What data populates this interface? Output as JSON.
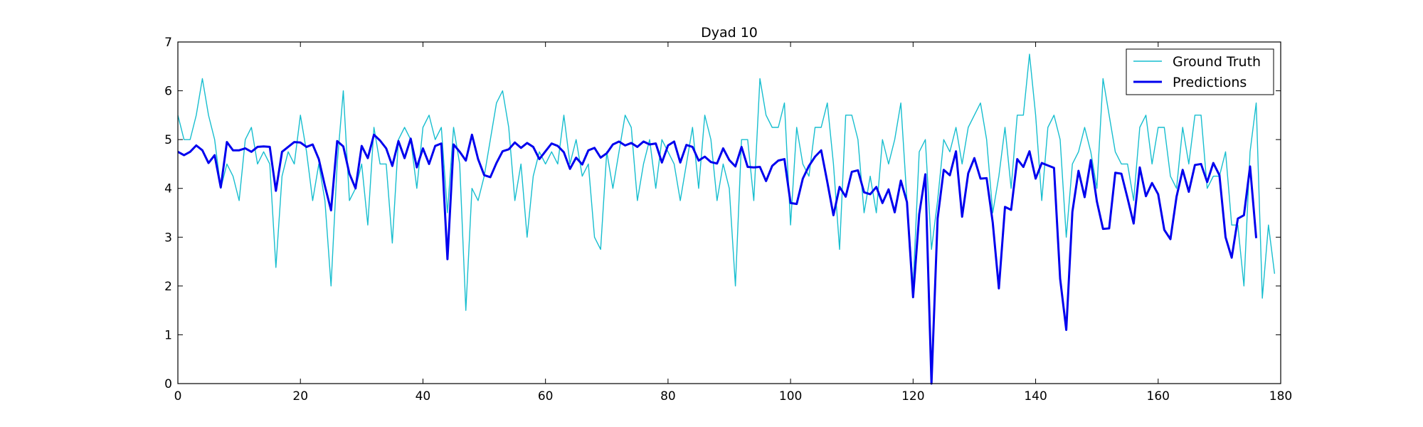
{
  "chart_data": {
    "type": "line",
    "title": "Dyad 10",
    "xlabel": "",
    "ylabel": "",
    "xlim": [
      0,
      180
    ],
    "ylim": [
      0,
      7
    ],
    "xticks": [
      0,
      20,
      40,
      60,
      80,
      100,
      120,
      140,
      160,
      180
    ],
    "yticks": [
      0,
      1,
      2,
      3,
      4,
      5,
      6,
      7
    ],
    "grid": false,
    "legend_position": "top-right",
    "series": [
      {
        "name": "Ground Truth",
        "color": "#17becf",
        "values": [
          5.5,
          5.0,
          5.0,
          5.5,
          6.25,
          5.5,
          5.0,
          4.0,
          4.5,
          4.25,
          3.75,
          5.0,
          5.25,
          4.5,
          4.75,
          4.5,
          2.38,
          4.25,
          4.75,
          4.5,
          5.5,
          4.75,
          3.75,
          4.5,
          3.75,
          2.0,
          4.5,
          6.0,
          3.75,
          4.0,
          4.5,
          3.25,
          5.25,
          4.5,
          4.5,
          2.88,
          5.0,
          5.25,
          5.0,
          4.0,
          5.25,
          5.5,
          5.0,
          5.25,
          3.5,
          5.25,
          4.5,
          1.5,
          4.0,
          3.75,
          4.25,
          5.0,
          5.75,
          6.0,
          5.25,
          3.75,
          4.5,
          3.0,
          4.25,
          4.75,
          4.5,
          4.75,
          4.5,
          5.5,
          4.5,
          5.0,
          4.25,
          4.5,
          3.0,
          2.75,
          4.75,
          4.0,
          4.75,
          5.5,
          5.25,
          3.75,
          4.5,
          5.0,
          4.0,
          5.0,
          4.75,
          4.5,
          3.75,
          4.5,
          5.25,
          4.0,
          5.5,
          5.0,
          3.75,
          4.5,
          4.0,
          2.0,
          5.0,
          5.0,
          3.75,
          6.25,
          5.5,
          5.25,
          5.25,
          5.75,
          3.25,
          5.25,
          4.5,
          4.25,
          5.25,
          5.25,
          5.75,
          4.5,
          2.75,
          5.5,
          5.5,
          5.0,
          3.5,
          4.25,
          3.5,
          5.0,
          4.5,
          5.0,
          5.75,
          3.75,
          2.0,
          4.75,
          5.0,
          2.75,
          3.75,
          5.0,
          4.75,
          5.25,
          4.5,
          5.25,
          5.5,
          5.75,
          5.0,
          3.5,
          4.25,
          5.25,
          4.0,
          5.5,
          5.5,
          6.75,
          5.5,
          3.75,
          5.25,
          5.5,
          5.0,
          3.0,
          4.5,
          4.75,
          5.25,
          4.75,
          4.0,
          6.25,
          5.5,
          4.75,
          4.5,
          4.5,
          3.75,
          5.25,
          5.5,
          4.5,
          5.25,
          5.25,
          4.25,
          4.0,
          5.25,
          4.5,
          5.5,
          5.5,
          4.0,
          4.25,
          4.25,
          4.75,
          3.25,
          3.25,
          2.0,
          4.75,
          5.75,
          1.75,
          3.25,
          2.25
        ]
      },
      {
        "name": "Predictions",
        "color": "#0000ee",
        "values": [
          4.75,
          4.68,
          4.75,
          4.88,
          4.78,
          4.52,
          4.68,
          4.02,
          4.95,
          4.78,
          4.78,
          4.82,
          4.75,
          4.85,
          4.86,
          4.85,
          3.95,
          4.75,
          4.85,
          4.95,
          4.94,
          4.85,
          4.9,
          4.6,
          4.05,
          3.55,
          4.97,
          4.86,
          4.3,
          4.0,
          4.87,
          4.62,
          5.1,
          4.98,
          4.82,
          4.46,
          4.97,
          4.62,
          5.02,
          4.43,
          4.82,
          4.5,
          4.87,
          4.92,
          2.55,
          4.9,
          4.75,
          4.57,
          5.1,
          4.6,
          4.27,
          4.23,
          4.52,
          4.76,
          4.8,
          4.94,
          4.83,
          4.93,
          4.85,
          4.6,
          4.76,
          4.92,
          4.87,
          4.74,
          4.4,
          4.63,
          4.49,
          4.78,
          4.83,
          4.63,
          4.72,
          4.9,
          4.96,
          4.88,
          4.93,
          4.85,
          4.96,
          4.9,
          4.92,
          4.53,
          4.88,
          4.96,
          4.53,
          4.89,
          4.85,
          4.57,
          4.65,
          4.54,
          4.51,
          4.82,
          4.58,
          4.45,
          4.85,
          4.44,
          4.43,
          4.44,
          4.15,
          4.46,
          4.57,
          4.6,
          3.7,
          3.68,
          4.2,
          4.46,
          4.65,
          4.78,
          4.13,
          3.45,
          4.03,
          3.83,
          4.34,
          4.37,
          3.92,
          3.88,
          4.03,
          3.7,
          3.98,
          3.51,
          4.16,
          3.72,
          1.77,
          3.47,
          4.29,
          0.0,
          3.38,
          4.38,
          4.27,
          4.76,
          3.42,
          4.31,
          4.62,
          4.2,
          4.21,
          3.3,
          1.95,
          3.62,
          3.56,
          4.6,
          4.44,
          4.76,
          4.2,
          4.52,
          4.47,
          4.42,
          2.15,
          1.1,
          3.52,
          4.36,
          3.82,
          4.58,
          3.73,
          3.17,
          3.18,
          4.32,
          4.3,
          3.8,
          3.28,
          4.43,
          3.84,
          4.11,
          3.88,
          3.15,
          2.96,
          3.83,
          4.38,
          3.93,
          4.48,
          4.5,
          4.13,
          4.52,
          4.27,
          3.0,
          2.58,
          3.38,
          3.45,
          4.45,
          2.98
        ]
      }
    ]
  }
}
